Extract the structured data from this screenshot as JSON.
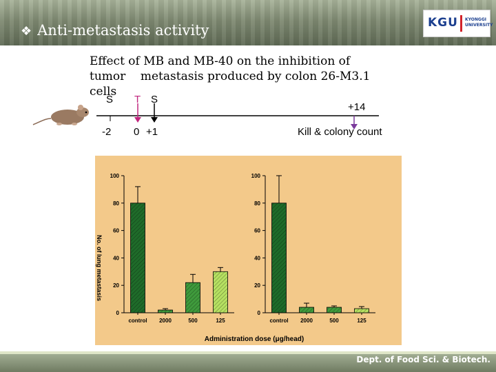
{
  "header": {
    "title": "Anti-metastasis activity",
    "logo_text": "KGU",
    "logo_name_line1": "KYONGGI",
    "logo_name_line2": "UNIVERSITY"
  },
  "subtitle": "Effect of MB and MB-40 on the inhibition of\ntumor    metastasis produced by colon 26-M3.1\ncells",
  "timeline": {
    "markers": [
      {
        "letter": "S",
        "day": "-2",
        "color": "#000000"
      },
      {
        "letter": "T",
        "day": "0",
        "color": "#c0267e"
      },
      {
        "letter": "S",
        "day": "+1",
        "color": "#000000"
      },
      {
        "letter": "",
        "day": "+14",
        "color": "#7b3a9c"
      }
    ],
    "end_label": "Kill &  colony count"
  },
  "chart_data": [
    {
      "type": "bar",
      "categories": [
        "control",
        "2000",
        "500",
        "125"
      ],
      "values": [
        80,
        2,
        22,
        30
      ],
      "errors": [
        12,
        1,
        6,
        3
      ],
      "ylim": [
        0,
        100
      ],
      "yticks": [
        0,
        20,
        40,
        60,
        80,
        100
      ],
      "ylabel": "No. of lung metastasis",
      "xlabel": "Administration dose (μg/head)",
      "colors": [
        "#1f6b2a",
        "#3f9a3c",
        "#3f9a3c",
        "#b5e061"
      ]
    },
    {
      "type": "bar",
      "categories": [
        "control",
        "2000",
        "500",
        "125"
      ],
      "values": [
        80,
        4,
        4,
        3
      ],
      "errors": [
        20,
        3,
        1,
        1.5
      ],
      "ylim": [
        0,
        100
      ],
      "yticks": [
        0,
        20,
        40,
        60,
        80,
        100
      ],
      "colors": [
        "#1f6b2a",
        "#3f9a3c",
        "#3f9a3c",
        "#b5e061"
      ]
    }
  ],
  "footer": {
    "dept": "Dept. of Food Sci. & Biotech."
  }
}
